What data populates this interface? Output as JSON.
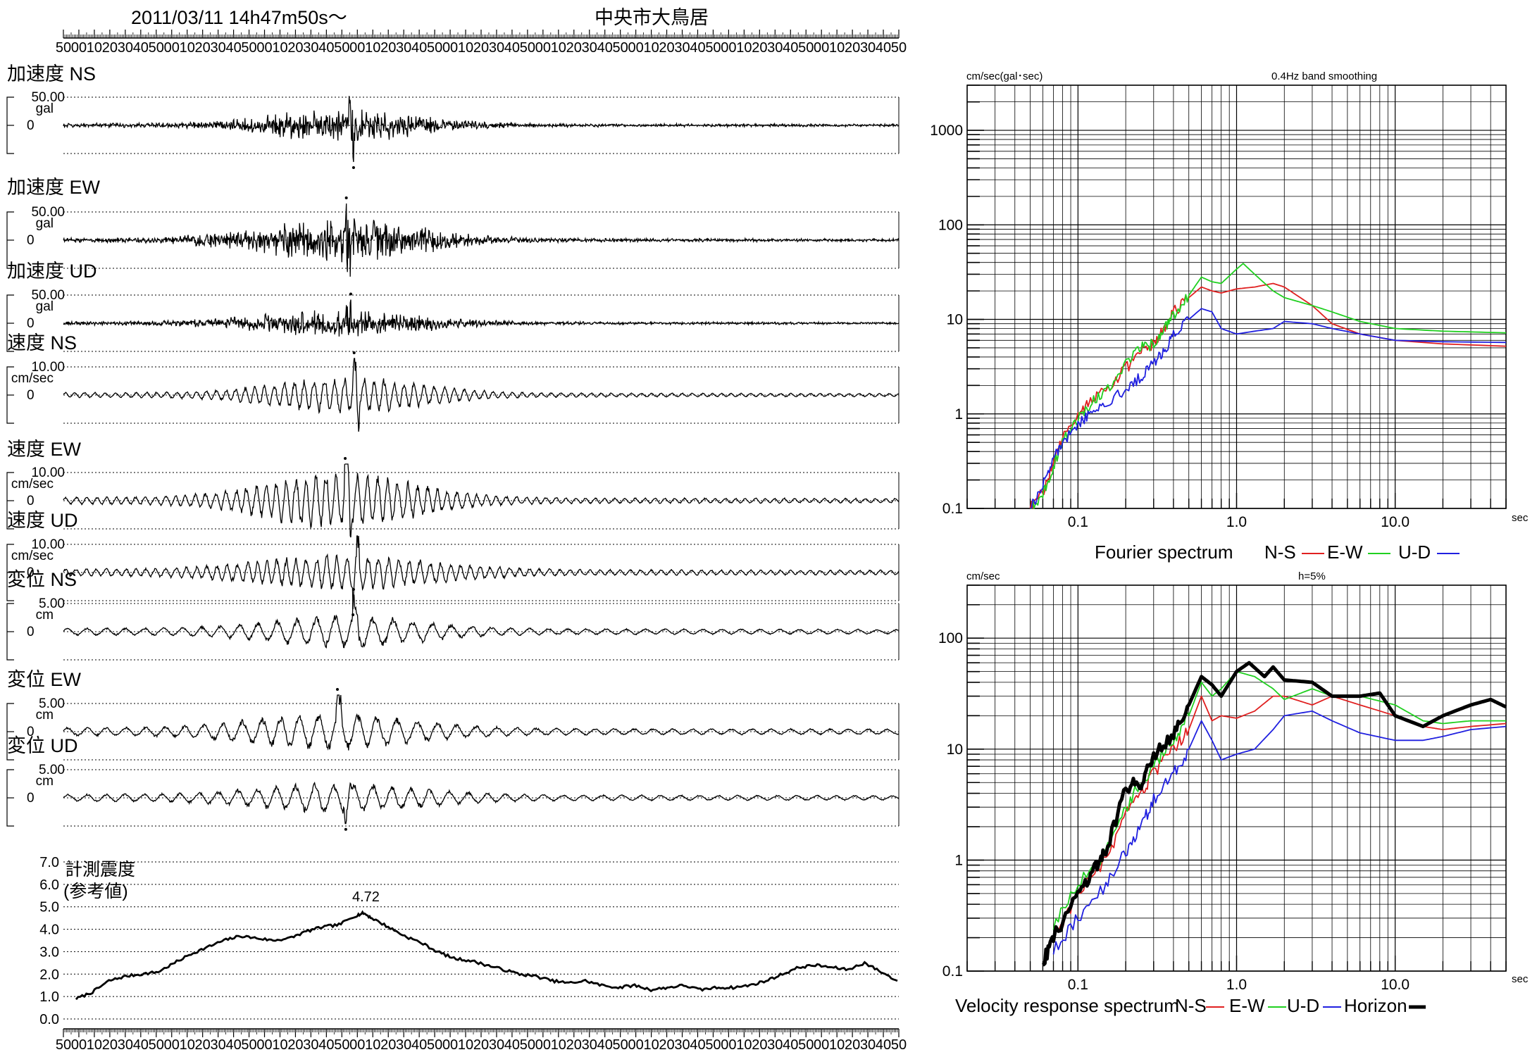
{
  "header": {
    "datetime": "2011/03/11  14h47m50s～",
    "station": "中央市大鳥居"
  },
  "colors": {
    "ns": "#e02020",
    "ew": "#20d020",
    "ud": "#2020e0",
    "horizon": "#000000"
  },
  "time_ticks": [
    "50",
    "00",
    "10",
    "20",
    "30",
    "40",
    "50",
    "00",
    "10",
    "20",
    "30",
    "40",
    "50",
    "00",
    "10",
    "20",
    "30",
    "40",
    "50",
    "00",
    "10",
    "20",
    "30",
    "40",
    "50",
    "00",
    "10",
    "20",
    "30",
    "40",
    "50",
    "00",
    "10",
    "20",
    "30",
    "40",
    "50",
    "00",
    "10",
    "20",
    "30",
    "40",
    "50",
    "00",
    "10",
    "20",
    "30",
    "40",
    "50",
    "00",
    "10",
    "20",
    "30",
    "40",
    "50"
  ],
  "chart_data": [
    {
      "type": "line",
      "title": "加速度 NS",
      "scale_label": "50.00",
      "unit": "gal",
      "zero_label": "0",
      "seed": 11,
      "amp": 0.55,
      "spike": 1.0,
      "center": 0.335,
      "width": 0.12,
      "style": "acc",
      "tail": 0.07
    },
    {
      "type": "line",
      "title": "加速度 EW",
      "scale_label": "50.00",
      "unit": "gal",
      "zero_label": "0",
      "seed": 23,
      "amp": 0.75,
      "spike": 1.0,
      "center": 0.33,
      "width": 0.13,
      "style": "acc",
      "tail": 0.08
    },
    {
      "type": "line",
      "title": "加速度 UD",
      "scale_label": "50.00",
      "unit": "gal",
      "zero_label": "0",
      "seed": 37,
      "amp": 0.45,
      "spike": 0.75,
      "center": 0.33,
      "width": 0.13,
      "style": "acc",
      "tail": 0.06
    },
    {
      "type": "line",
      "title": "速度 NS",
      "scale_label": "10.00",
      "unit": "cm/sec",
      "zero_label": "0",
      "seed": 41,
      "amp": 0.55,
      "spike": 1.0,
      "center": 0.34,
      "width": 0.12,
      "style": "vel",
      "tail": 0.08
    },
    {
      "type": "line",
      "title": "速度 EW",
      "scale_label": "10.00",
      "unit": "cm/sec",
      "zero_label": "0",
      "seed": 53,
      "amp": 0.85,
      "spike": 1.0,
      "center": 0.33,
      "width": 0.12,
      "style": "vel",
      "tail": 0.12
    },
    {
      "type": "line",
      "title": "速度 UD",
      "scale_label": "10.00",
      "unit": "cm/sec",
      "zero_label": "0",
      "seed": 67,
      "amp": 0.5,
      "spike": 0.8,
      "center": 0.34,
      "width": 0.14,
      "style": "vel",
      "tail": 0.12
    },
    {
      "type": "line",
      "title": "変位 NS",
      "scale_label": "5.00",
      "unit": "cm",
      "zero_label": "0",
      "seed": 71,
      "amp": 0.45,
      "spike": 1.0,
      "center": 0.34,
      "width": 0.12,
      "style": "disp",
      "tail": 0.12
    },
    {
      "type": "line",
      "title": "変位 EW",
      "scale_label": "5.00",
      "unit": "cm",
      "zero_label": "0",
      "seed": 83,
      "amp": 0.5,
      "spike": 1.0,
      "center": 0.32,
      "width": 0.13,
      "style": "disp",
      "tail": 0.14
    },
    {
      "type": "line",
      "title": "変位 UD",
      "scale_label": "5.00",
      "unit": "cm",
      "zero_label": "0",
      "seed": 97,
      "amp": 0.4,
      "spike": 0.85,
      "center": 0.33,
      "width": 0.13,
      "style": "disp",
      "tail": 0.12
    },
    {
      "type": "line",
      "title": "計測震度",
      "subtitle": "(参考値)",
      "peak_label": "4.72",
      "y_ticks": [
        "0.0",
        "1.0",
        "2.0",
        "3.0",
        "4.0",
        "5.0",
        "6.0",
        "7.0"
      ],
      "ylim": [
        0,
        7
      ],
      "x": [
        0,
        0.02,
        0.04,
        0.06,
        0.08,
        0.1,
        0.12,
        0.14,
        0.16,
        0.18,
        0.2,
        0.22,
        0.24,
        0.26,
        0.28,
        0.3,
        0.32,
        0.34,
        0.35,
        0.36,
        0.38,
        0.4,
        0.42,
        0.44,
        0.46,
        0.48,
        0.5,
        0.52,
        0.54,
        0.56,
        0.58,
        0.6,
        0.62,
        0.64,
        0.66,
        0.68,
        0.7,
        0.72,
        0.74,
        0.76,
        0.78,
        0.8,
        0.82,
        0.84,
        0.86,
        0.88,
        0.9,
        0.92,
        0.94,
        0.96,
        0.98,
        1.0
      ],
      "y": [
        0.9,
        1.2,
        1.7,
        1.9,
        2.0,
        2.1,
        2.5,
        2.9,
        3.2,
        3.5,
        3.7,
        3.6,
        3.5,
        3.6,
        3.9,
        4.1,
        4.2,
        4.6,
        4.72,
        4.5,
        4.1,
        3.7,
        3.4,
        3.0,
        2.7,
        2.6,
        2.4,
        2.2,
        2.0,
        1.9,
        1.7,
        1.6,
        1.7,
        1.5,
        1.4,
        1.5,
        1.3,
        1.4,
        1.5,
        1.3,
        1.4,
        1.4,
        1.5,
        1.7,
        2.0,
        2.3,
        2.4,
        2.3,
        2.2,
        2.5,
        2.1,
        1.7
      ]
    },
    {
      "type": "line",
      "title": "Fourier spectrum",
      "y_unit": "cm/sec(gal･sec)",
      "note": "0.4Hz band smoothing",
      "x_unit": "sec",
      "log_x": true,
      "log_y": true,
      "xlim": [
        0.02,
        50
      ],
      "ylim": [
        0.1,
        3000
      ],
      "x_ticks": [
        "0.1",
        "1.0",
        "10.0"
      ],
      "y_ticks": [
        "0.1",
        "1",
        "10",
        "100",
        "1000"
      ],
      "legend": {
        "prefix": "Fourier spectrum",
        "ns": "N-S",
        "ew": "E-W",
        "ud": "U-D"
      },
      "series": [
        {
          "name": "N-S",
          "color": "#e02020",
          "x": [
            0.05,
            0.06,
            0.07,
            0.08,
            0.1,
            0.12,
            0.15,
            0.2,
            0.25,
            0.3,
            0.35,
            0.4,
            0.5,
            0.6,
            0.7,
            0.8,
            1.0,
            1.3,
            1.7,
            2.0,
            3,
            4,
            6,
            10,
            20,
            50
          ],
          "y": [
            0.1,
            0.15,
            0.3,
            0.6,
            1.0,
            1.4,
            1.8,
            3.0,
            4.5,
            5.5,
            8,
            12,
            17,
            22,
            20,
            19,
            21,
            22,
            24,
            22,
            14,
            9,
            7,
            6,
            5.5,
            5.2
          ]
        },
        {
          "name": "E-W",
          "color": "#20d020",
          "x": [
            0.05,
            0.06,
            0.07,
            0.08,
            0.1,
            0.12,
            0.15,
            0.2,
            0.25,
            0.3,
            0.35,
            0.4,
            0.5,
            0.6,
            0.7,
            0.8,
            1.0,
            1.1,
            1.3,
            1.7,
            2.0,
            3,
            4,
            6,
            10,
            20,
            50
          ],
          "y": [
            0.1,
            0.14,
            0.28,
            0.5,
            0.9,
            1.3,
            1.7,
            3.5,
            5,
            5.5,
            8,
            11,
            18,
            28,
            25,
            24,
            34,
            39,
            30,
            20,
            17,
            14,
            12,
            9.5,
            8,
            7.5,
            7.2
          ]
        },
        {
          "name": "U-D",
          "color": "#2020e0",
          "x": [
            0.05,
            0.06,
            0.07,
            0.08,
            0.1,
            0.12,
            0.15,
            0.2,
            0.25,
            0.3,
            0.35,
            0.4,
            0.5,
            0.6,
            0.7,
            0.8,
            1.0,
            1.3,
            1.7,
            2.0,
            3,
            4,
            6,
            10,
            20,
            50
          ],
          "y": [
            0.1,
            0.18,
            0.35,
            0.5,
            0.8,
            1.0,
            1.3,
            1.8,
            2.5,
            3.5,
            4.5,
            7,
            10,
            13,
            12,
            8,
            7,
            7.5,
            8,
            9.5,
            9,
            8,
            7,
            6,
            5.8,
            5.7
          ]
        }
      ]
    },
    {
      "type": "line",
      "title": "Velocity response spectrum",
      "y_unit": "cm/sec",
      "note": "h=5%",
      "x_unit": "sec",
      "log_x": true,
      "log_y": true,
      "xlim": [
        0.02,
        50
      ],
      "ylim": [
        0.1,
        300
      ],
      "x_ticks": [
        "0.1",
        "1.0",
        "10.0"
      ],
      "y_ticks": [
        "0.1",
        "1",
        "10",
        "100"
      ],
      "legend": {
        "prefix": "Velocity response spectrum",
        "ns": "N-S",
        "ew": "E-W",
        "ud": "U-D",
        "horizon": "Horizon"
      },
      "series": [
        {
          "name": "N-S",
          "color": "#e02020",
          "x": [
            0.07,
            0.1,
            0.15,
            0.2,
            0.25,
            0.3,
            0.4,
            0.5,
            0.6,
            0.7,
            0.8,
            1.0,
            1.3,
            1.7,
            2.0,
            3,
            4,
            6,
            10,
            15,
            20,
            30,
            50
          ],
          "y": [
            0.2,
            0.5,
            1.0,
            2.5,
            4,
            6,
            10,
            15,
            30,
            18,
            20,
            19,
            22,
            30,
            30,
            25,
            30,
            25,
            20,
            16,
            15,
            16,
            17
          ]
        },
        {
          "name": "E-W",
          "color": "#20d020",
          "x": [
            0.07,
            0.1,
            0.15,
            0.2,
            0.25,
            0.3,
            0.4,
            0.5,
            0.6,
            0.7,
            0.8,
            1.0,
            1.3,
            1.7,
            2.0,
            3,
            4,
            6,
            10,
            15,
            20,
            30,
            50
          ],
          "y": [
            0.25,
            0.6,
            1.2,
            3,
            5,
            7,
            12,
            20,
            40,
            30,
            35,
            50,
            45,
            35,
            28,
            35,
            30,
            30,
            25,
            18,
            17,
            18,
            18
          ]
        },
        {
          "name": "U-D",
          "color": "#2020e0",
          "x": [
            0.07,
            0.1,
            0.15,
            0.2,
            0.25,
            0.3,
            0.4,
            0.5,
            0.6,
            0.7,
            0.8,
            1.0,
            1.3,
            1.7,
            2.0,
            3,
            4,
            6,
            10,
            15,
            20,
            30,
            50
          ],
          "y": [
            0.15,
            0.3,
            0.6,
            1.2,
            2,
            3.5,
            6,
            10,
            18,
            12,
            8,
            9,
            10,
            15,
            20,
            22,
            18,
            14,
            12,
            12,
            13,
            15,
            16
          ]
        },
        {
          "name": "Horizon",
          "color": "#000000",
          "x": [
            0.06,
            0.07,
            0.1,
            0.13,
            0.15,
            0.2,
            0.25,
            0.3,
            0.4,
            0.5,
            0.6,
            0.7,
            0.8,
            1.0,
            1.2,
            1.5,
            1.7,
            2.0,
            3,
            4,
            6,
            8,
            10,
            15,
            20,
            30,
            40,
            50
          ],
          "y": [
            0.12,
            0.2,
            0.5,
            0.9,
            1.2,
            4.5,
            5,
            9,
            14,
            25,
            45,
            38,
            30,
            50,
            60,
            45,
            55,
            42,
            40,
            30,
            30,
            32,
            20,
            16,
            20,
            25,
            28,
            24
          ]
        }
      ]
    }
  ]
}
